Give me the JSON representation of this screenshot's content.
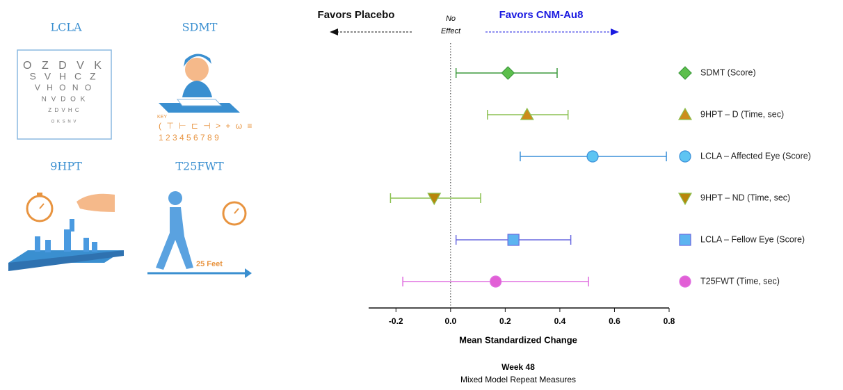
{
  "chart_data": {
    "type": "forest",
    "header_left": "Favors Placebo",
    "header_mid": [
      "No",
      "Effect"
    ],
    "header_right": "Favors CNM-Au8",
    "xlabel": "Mean Standardized Change",
    "footer": [
      "Week 48",
      "Mixed Model Repeat Measures"
    ],
    "xlim": [
      -0.3,
      0.8
    ],
    "xticks": [
      -0.2,
      {
        "value": 0,
        "label": "0.0"
      },
      0.2,
      0.4,
      0.6,
      0.8
    ],
    "series": [
      {
        "name": "SDMT (Score)",
        "marker": "diamond",
        "color": "#3d9a3d",
        "fill": "#5cbf4c",
        "values": [
          0.21
        ],
        "lower": [
          0.02
        ],
        "upper": [
          0.39
        ]
      },
      {
        "name": "9HPT – D (Time, sec)",
        "marker": "triangle-up",
        "color": "#8cc152",
        "fill": "#cc8c1c",
        "values": [
          0.28
        ],
        "lower": [
          0.135
        ],
        "upper": [
          0.43
        ]
      },
      {
        "name": "LCLA – Affected Eye (Score)",
        "marker": "circle",
        "color": "#3a8fd8",
        "fill": "#5ec4f2",
        "values": [
          0.52
        ],
        "lower": [
          0.255
        ],
        "upper": [
          0.79
        ]
      },
      {
        "name": "9HPT – ND (Time, sec)",
        "marker": "triangle-down",
        "color": "#8cc152",
        "fill": "#b8860b",
        "values": [
          -0.06
        ],
        "lower": [
          -0.22
        ],
        "upper": [
          0.11
        ]
      },
      {
        "name": "LCLA – Fellow Eye (Score)",
        "marker": "square",
        "color": "#6a6ae0",
        "fill": "#5cb4f0",
        "values": [
          0.23
        ],
        "lower": [
          0.02
        ],
        "upper": [
          0.44
        ]
      },
      {
        "name": "T25FWT (Time, sec)",
        "marker": "circle",
        "color": "#e070e0",
        "fill": "#e25fd6",
        "values": [
          0.165
        ],
        "lower": [
          -0.175
        ],
        "upper": [
          0.505
        ]
      }
    ]
  },
  "illustrations": {
    "labels": [
      "LCLA",
      "SDMT",
      "9HPT",
      "T25FWT"
    ],
    "eye_chart": [
      "O Z D V K",
      "S V H C Z",
      "V H O N O",
      "N V D O K",
      "Z D V H C",
      "O K S N V"
    ],
    "key": "KEY",
    "digits": "1 2 3 4 5 6 7 8 9",
    "distance": "25 Feet"
  }
}
